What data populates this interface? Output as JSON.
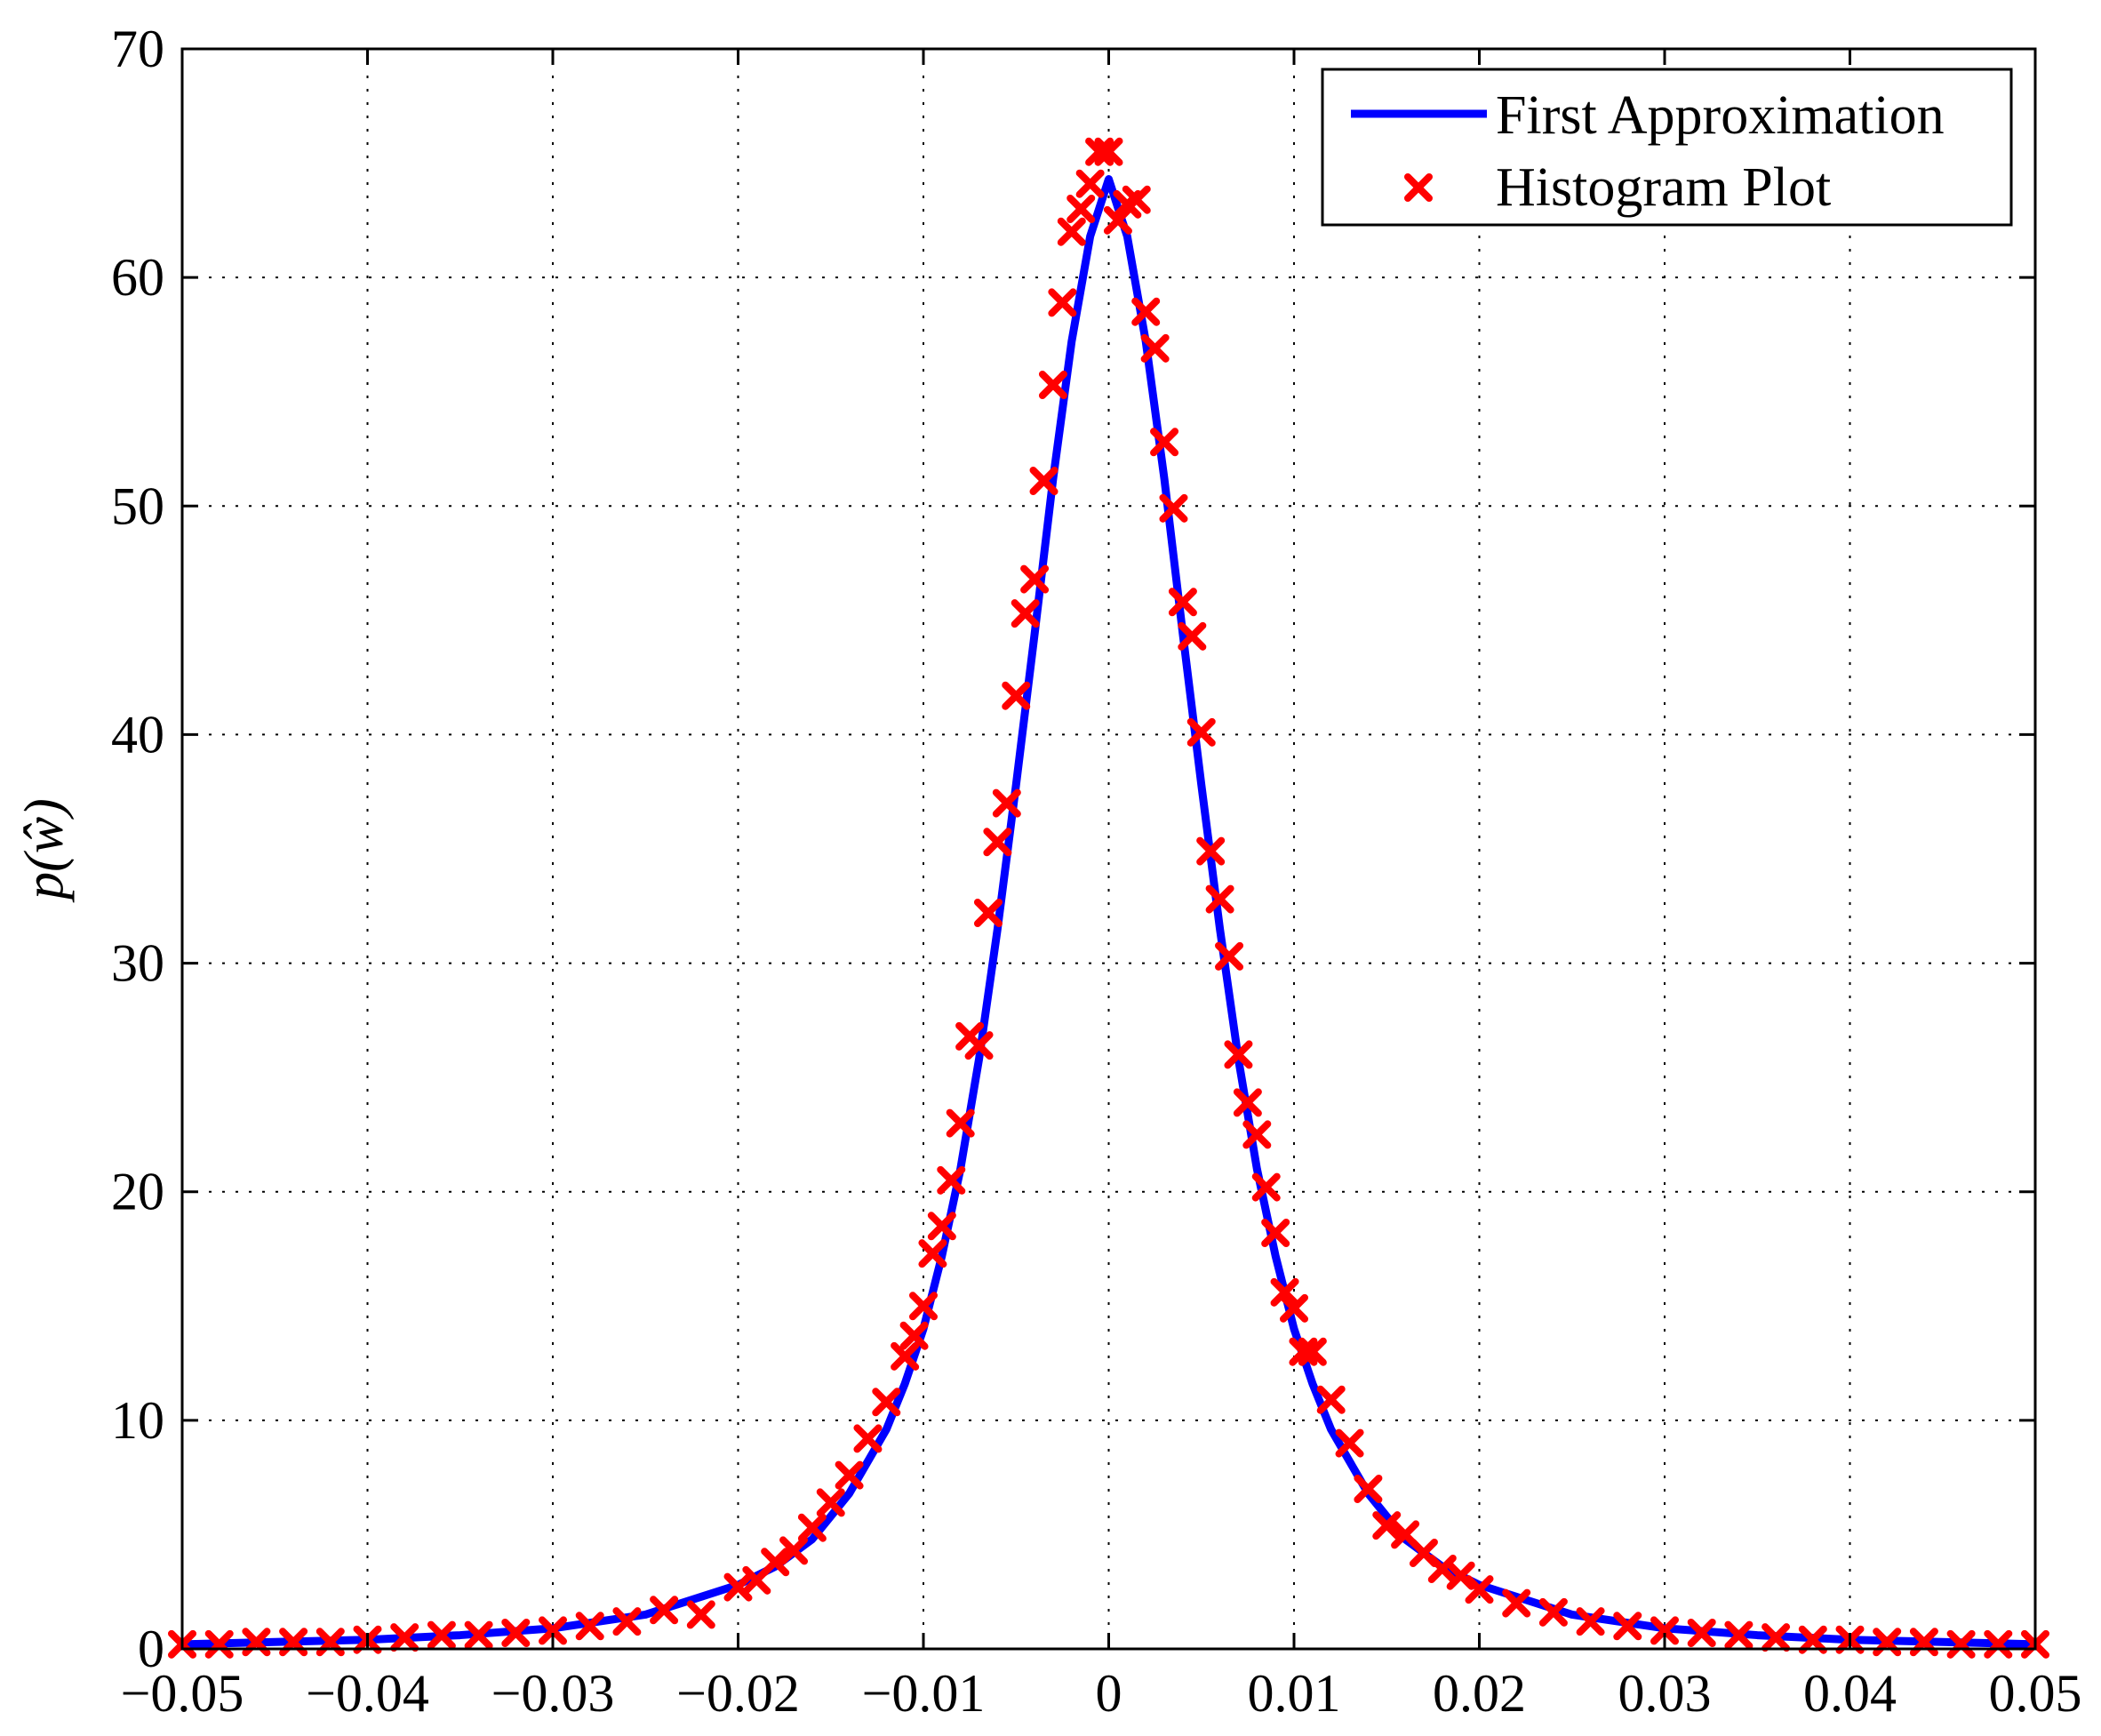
{
  "chart_data": {
    "type": "line",
    "title": "",
    "xlabel": "",
    "ylabel": "p(ŵ)",
    "xlim": [
      -0.05,
      0.05
    ],
    "ylim": [
      0,
      70
    ],
    "x_ticks": [
      -0.05,
      -0.04,
      -0.03,
      -0.02,
      -0.01,
      0,
      0.01,
      0.02,
      0.03,
      0.04,
      0.05
    ],
    "x_tick_labels": [
      "−0.05",
      "−0.04",
      "−0.03",
      "−0.02",
      "−0.01",
      "0",
      "0.01",
      "0.02",
      "0.03",
      "0.04",
      "0.05"
    ],
    "y_ticks": [
      0,
      10,
      20,
      30,
      40,
      50,
      60,
      70
    ],
    "y_tick_labels": [
      "0",
      "10",
      "20",
      "30",
      "40",
      "50",
      "60",
      "70"
    ],
    "grid": true,
    "legend_position": "top-right",
    "series": [
      {
        "name": "First Approximation",
        "style": "line",
        "color": "#0000ff",
        "x": [
          -0.05,
          -0.045,
          -0.04,
          -0.035,
          -0.03,
          -0.025,
          -0.02,
          -0.018,
          -0.016,
          -0.014,
          -0.012,
          -0.011,
          -0.01,
          -0.009,
          -0.008,
          -0.007,
          -0.006,
          -0.005,
          -0.004,
          -0.003,
          -0.002,
          -0.001,
          0,
          0.001,
          0.002,
          0.003,
          0.004,
          0.005,
          0.006,
          0.007,
          0.008,
          0.009,
          0.01,
          0.011,
          0.012,
          0.014,
          0.016,
          0.018,
          0.02,
          0.025,
          0.03,
          0.035,
          0.04,
          0.045,
          0.05
        ],
        "y": [
          0.2,
          0.3,
          0.4,
          0.6,
          0.9,
          1.5,
          2.8,
          3.6,
          4.8,
          6.8,
          9.6,
          11.6,
          14.0,
          17.2,
          21.0,
          25.8,
          31.5,
          37.8,
          44.4,
          51.2,
          57.2,
          61.8,
          64.3,
          61.8,
          57.2,
          51.2,
          44.4,
          37.8,
          31.5,
          25.8,
          21.0,
          17.2,
          14.0,
          11.6,
          9.6,
          6.8,
          4.8,
          3.6,
          2.8,
          1.5,
          0.9,
          0.6,
          0.4,
          0.3,
          0.2
        ]
      },
      {
        "name": "Histogram Plot",
        "style": "markers",
        "marker": "x",
        "color": "#ff0000",
        "x": [
          -0.05,
          -0.048,
          -0.046,
          -0.044,
          -0.042,
          -0.04,
          -0.038,
          -0.036,
          -0.034,
          -0.032,
          -0.03,
          -0.028,
          -0.026,
          -0.024,
          -0.022,
          -0.02,
          -0.019,
          -0.018,
          -0.017,
          -0.016,
          -0.015,
          -0.014,
          -0.013,
          -0.012,
          -0.011,
          -0.0105,
          -0.01,
          -0.0095,
          -0.009,
          -0.0085,
          -0.008,
          -0.0075,
          -0.007,
          -0.0065,
          -0.006,
          -0.0055,
          -0.005,
          -0.0045,
          -0.004,
          -0.0035,
          -0.003,
          -0.0025,
          -0.002,
          -0.0015,
          -0.001,
          -0.0005,
          0,
          0.0005,
          0.001,
          0.0015,
          0.002,
          0.0025,
          0.003,
          0.0035,
          0.004,
          0.0045,
          0.005,
          0.0055,
          0.006,
          0.0065,
          0.007,
          0.0075,
          0.008,
          0.0085,
          0.009,
          0.0095,
          0.01,
          0.0105,
          0.011,
          0.012,
          0.013,
          0.014,
          0.015,
          0.016,
          0.017,
          0.018,
          0.019,
          0.02,
          0.022,
          0.024,
          0.026,
          0.028,
          0.03,
          0.032,
          0.034,
          0.036,
          0.038,
          0.04,
          0.042,
          0.044,
          0.046,
          0.048,
          0.05
        ],
        "y": [
          0.2,
          0.2,
          0.3,
          0.3,
          0.3,
          0.4,
          0.5,
          0.6,
          0.6,
          0.7,
          0.8,
          1.0,
          1.2,
          1.7,
          1.5,
          2.7,
          3.0,
          3.8,
          4.3,
          5.3,
          6.4,
          7.6,
          9.2,
          10.8,
          12.8,
          13.7,
          15.0,
          17.3,
          18.5,
          20.5,
          23.0,
          26.8,
          26.4,
          32.2,
          35.3,
          37.0,
          41.7,
          45.3,
          46.8,
          51.1,
          55.3,
          58.9,
          62.0,
          63.0,
          64.1,
          65.5,
          65.5,
          62.5,
          63.2,
          63.4,
          58.5,
          56.9,
          52.8,
          49.9,
          45.8,
          44.3,
          40.1,
          34.9,
          32.8,
          30.3,
          26.0,
          23.9,
          22.5,
          20.2,
          18.2,
          15.6,
          14.9,
          13.0,
          13.0,
          10.9,
          9.0,
          7.0,
          5.4,
          5.0,
          4.2,
          3.5,
          3.2,
          2.6,
          2.0,
          1.6,
          1.2,
          1.0,
          0.8,
          0.7,
          0.6,
          0.5,
          0.4,
          0.4,
          0.3,
          0.3,
          0.2,
          0.2,
          0.2
        ]
      }
    ]
  }
}
